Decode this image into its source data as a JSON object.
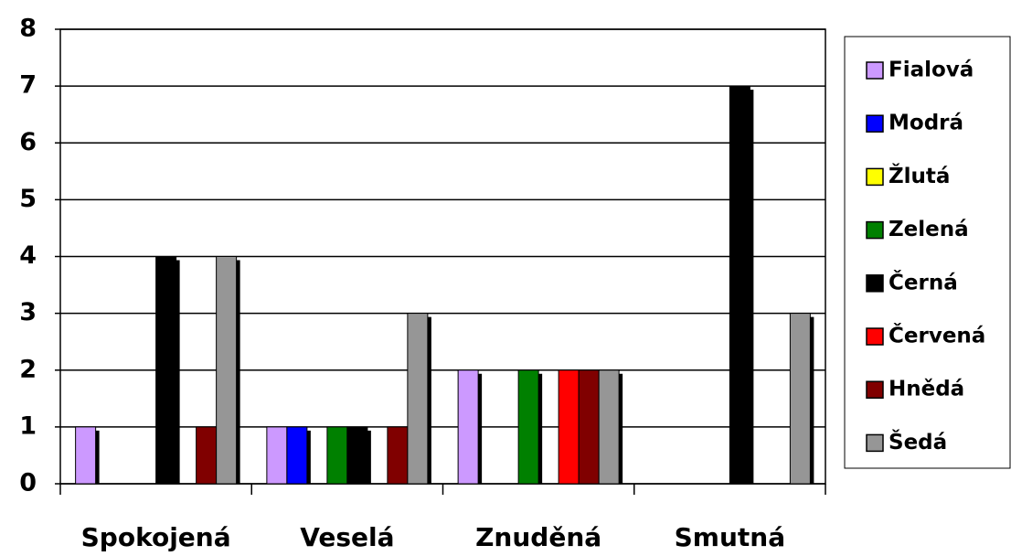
{
  "chart_data": {
    "type": "bar",
    "categories": [
      "Spokojená",
      "Veselá",
      "Znuděná",
      "Smutná"
    ],
    "series": [
      {
        "name": "Fialová",
        "color": "#cc99ff",
        "values": [
          1,
          1,
          2,
          0
        ]
      },
      {
        "name": "Modrá",
        "color": "#0000ff",
        "values": [
          0,
          1,
          0,
          0
        ]
      },
      {
        "name": "Žlutá",
        "color": "#ffff00",
        "values": [
          0,
          0,
          0,
          0
        ]
      },
      {
        "name": "Zelená",
        "color": "#008000",
        "values": [
          0,
          1,
          2,
          0
        ]
      },
      {
        "name": "Černá",
        "color": "#000000",
        "values": [
          4,
          1,
          0,
          7
        ]
      },
      {
        "name": "Červená",
        "color": "#ff0000",
        "values": [
          0,
          0,
          2,
          0
        ]
      },
      {
        "name": "Hnědá",
        "color": "#800000",
        "values": [
          1,
          1,
          2,
          0
        ]
      },
      {
        "name": "Šedá",
        "color": "#969696",
        "values": [
          4,
          3,
          2,
          3
        ]
      }
    ],
    "ylim": [
      0,
      8
    ],
    "yticks": [
      0,
      1,
      2,
      3,
      4,
      5,
      6,
      7,
      8
    ],
    "grid": true,
    "legend": "right"
  }
}
